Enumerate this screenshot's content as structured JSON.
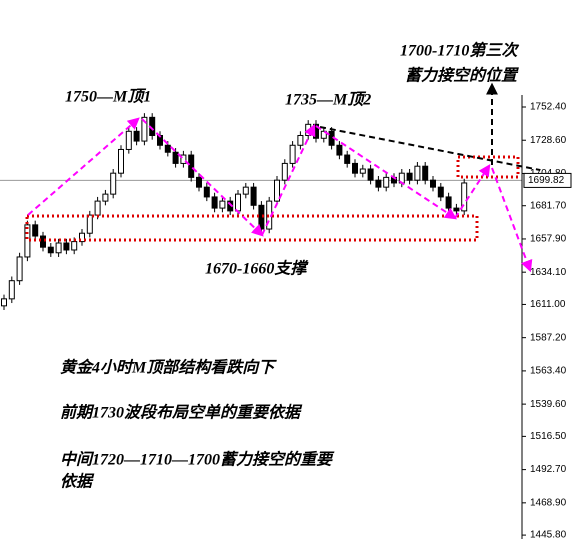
{
  "chart_data": {
    "type": "candlestick",
    "open": [
      1610,
      1615,
      1628,
      1645,
      1668,
      1660,
      1652,
      1648,
      1655,
      1650,
      1656,
      1662,
      1675,
      1685,
      1690,
      1705,
      1722,
      1735,
      1728,
      1745,
      1732,
      1725,
      1720,
      1712,
      1718,
      1702,
      1695,
      1688,
      1680,
      1685,
      1678,
      1690,
      1695,
      1682,
      1665,
      1685,
      1700,
      1712,
      1725,
      1732,
      1740,
      1730,
      1735,
      1725,
      1718,
      1712,
      1705,
      1708,
      1700,
      1695,
      1702,
      1698,
      1705,
      1700,
      1710,
      1700,
      1695,
      1688,
      1680,
      1678
    ],
    "high": [
      1618,
      1631,
      1648,
      1671,
      1671,
      1663,
      1655,
      1658,
      1658,
      1659,
      1665,
      1678,
      1688,
      1693,
      1708,
      1725,
      1738,
      1738,
      1748,
      1748,
      1735,
      1728,
      1723,
      1721,
      1721,
      1705,
      1698,
      1691,
      1688,
      1688,
      1693,
      1698,
      1698,
      1685,
      1688,
      1703,
      1715,
      1728,
      1735,
      1743,
      1743,
      1738,
      1738,
      1728,
      1721,
      1715,
      1711,
      1711,
      1703,
      1705,
      1705,
      1708,
      1708,
      1713,
      1713,
      1703,
      1698,
      1691,
      1683,
      1701
    ],
    "low": [
      1607,
      1612,
      1625,
      1642,
      1657,
      1649,
      1645,
      1645,
      1647,
      1647,
      1653,
      1659,
      1672,
      1682,
      1687,
      1702,
      1719,
      1725,
      1725,
      1729,
      1722,
      1717,
      1709,
      1709,
      1699,
      1692,
      1685,
      1677,
      1677,
      1675,
      1675,
      1687,
      1679,
      1662,
      1662,
      1682,
      1697,
      1709,
      1722,
      1729,
      1727,
      1727,
      1722,
      1715,
      1709,
      1702,
      1702,
      1697,
      1692,
      1692,
      1695,
      1695,
      1697,
      1697,
      1697,
      1692,
      1685,
      1677,
      1675,
      1675
    ],
    "close": [
      1615,
      1628,
      1645,
      1668,
      1660,
      1652,
      1648,
      1655,
      1650,
      1656,
      1662,
      1675,
      1685,
      1690,
      1705,
      1722,
      1735,
      1728,
      1745,
      1732,
      1725,
      1720,
      1712,
      1718,
      1702,
      1695,
      1688,
      1680,
      1685,
      1678,
      1690,
      1695,
      1682,
      1665,
      1685,
      1700,
      1712,
      1725,
      1732,
      1740,
      1730,
      1735,
      1725,
      1718,
      1712,
      1705,
      1708,
      1700,
      1695,
      1702,
      1698,
      1705,
      1700,
      1710,
      1700,
      1695,
      1688,
      1680,
      1678,
      1698
    ],
    "ylim": [
      1443,
      1761
    ],
    "yticks": [
      {
        "value": 1752.4,
        "label": "1752.40"
      },
      {
        "value": 1728.6,
        "label": "1728.60"
      },
      {
        "value": 1704.8,
        "label": "1704.80"
      },
      {
        "value": 1681.7,
        "label": "1681.70"
      },
      {
        "value": 1657.9,
        "label": "1657.90"
      },
      {
        "value": 1634.1,
        "label": "1634.10"
      },
      {
        "value": 1611,
        "label": "1611.00"
      },
      {
        "value": 1587.2,
        "label": "1587.20"
      },
      {
        "value": 1563.4,
        "label": "1563.40"
      },
      {
        "value": 1539.6,
        "label": "1539.60"
      },
      {
        "value": 1516.5,
        "label": "1516.50"
      },
      {
        "value": 1492.7,
        "label": "1492.70"
      },
      {
        "value": 1468.9,
        "label": "1468.90"
      },
      {
        "value": 1445.8,
        "label": "1445.80"
      }
    ],
    "current_price": 1699.82,
    "annotations": [
      "1750—M顶1",
      "1735—M顶2",
      "1670-1660支撑",
      "1700-1710第三次",
      "蓄力接空的位置",
      "黄金4小时M顶部结构看跌向下",
      "前期1730波段布局空单的重要依据",
      "中间1720—1710—1700蓄力接空的重要",
      "依据"
    ]
  }
}
